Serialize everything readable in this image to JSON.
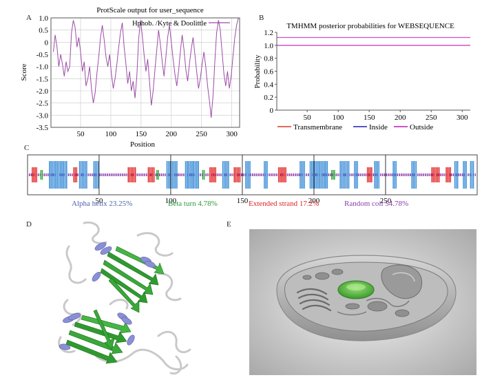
{
  "panels": {
    "a": "A",
    "b": "B",
    "c": "C",
    "d": "D",
    "e": "E"
  },
  "chart_data": [
    {
      "type": "line",
      "title": "ProtScale output for user_sequence",
      "xlabel": "Position",
      "ylabel": "Score",
      "xlim": [
        1,
        313
      ],
      "ylim": [
        -3.5,
        1.0
      ],
      "xticks": [
        50,
        100,
        150,
        200,
        250,
        300
      ],
      "yticks": [
        1.0,
        0.5,
        0,
        -0.5,
        -1.0,
        -1.5,
        -2.0,
        -2.5,
        -3.0,
        -3.5
      ],
      "ytick_labels": [
        "1.0",
        "0.5",
        "0",
        "-0.5",
        "-1.0",
        "-1.5",
        "-2.0",
        "-2.5",
        "-3.0",
        "-3.5"
      ],
      "series": [
        {
          "name": "Hphob. /Kyte & Doolittle",
          "color": "#9b4ba6",
          "x": [
            5,
            8,
            11,
            14,
            17,
            20,
            23,
            26,
            29,
            32,
            35,
            38,
            41,
            44,
            47,
            50,
            53,
            56,
            59,
            62,
            65,
            68,
            71,
            74,
            77,
            80,
            83,
            86,
            89,
            92,
            95,
            98,
            101,
            104,
            107,
            110,
            113,
            116,
            119,
            122,
            125,
            128,
            131,
            134,
            137,
            140,
            143,
            146,
            149,
            152,
            155,
            158,
            161,
            164,
            167,
            170,
            173,
            176,
            179,
            182,
            185,
            188,
            191,
            194,
            197,
            200,
            203,
            206,
            209,
            212,
            215,
            218,
            221,
            224,
            227,
            230,
            233,
            236,
            239,
            242,
            245,
            248,
            251,
            254,
            257,
            260,
            263,
            266,
            269,
            272,
            275,
            278,
            281,
            284,
            287,
            290,
            293,
            296,
            299,
            302,
            305,
            308,
            311
          ],
          "values": [
            -0.4,
            0.3,
            -0.2,
            -1.0,
            -0.5,
            -0.9,
            -1.4,
            -0.8,
            -1.2,
            -1.0,
            0.4,
            0.9,
            0.6,
            -0.2,
            0.2,
            -0.4,
            -1.2,
            -0.8,
            -1.8,
            -1.5,
            -1.0,
            -1.9,
            -2.5,
            -2.1,
            -1.3,
            -0.6,
            0.2,
            0.7,
            0.1,
            -0.6,
            -1.0,
            -0.5,
            -1.3,
            -1.9,
            -1.5,
            -0.9,
            -0.2,
            0.4,
            0.8,
            -0.2,
            -0.9,
            -1.7,
            -1.2,
            -2.0,
            -1.6,
            -2.3,
            -1.4,
            0.1,
            0.9,
            0.3,
            -0.5,
            -1.2,
            -0.7,
            -1.6,
            -2.6,
            -2.0,
            -1.1,
            -0.3,
            0.5,
            -0.1,
            -0.8,
            -1.4,
            -0.6,
            0.2,
            0.7,
            0.0,
            -0.7,
            -1.3,
            -1.8,
            -1.2,
            -0.4,
            0.3,
            -0.3,
            -1.1,
            -1.6,
            -0.9,
            -0.3,
            0.2,
            -0.5,
            -1.2,
            -1.9,
            -1.5,
            -0.9,
            -0.4,
            -1.0,
            -1.8,
            -2.4,
            -3.1,
            -2.2,
            -0.8,
            0.4,
            0.9,
            0.5,
            -0.4,
            -1.3,
            -1.8,
            -1.2,
            -1.9,
            -1.4,
            -0.6,
            0.2,
            0.7,
            1.0
          ]
        }
      ]
    },
    {
      "type": "line",
      "title": "TMHMM posterior probabilities for WEBSEQUENCE",
      "xlabel": "",
      "ylabel": "Probability",
      "xlim": [
        1,
        313
      ],
      "ylim": [
        0,
        1.2
      ],
      "xticks": [
        50,
        100,
        150,
        200,
        250,
        300
      ],
      "yticks": [
        0,
        0.2,
        0.4,
        0.6,
        0.8,
        1.0,
        1.2
      ],
      "ytick_labels": [
        "0",
        "0.2",
        "0.4",
        "0.6",
        "0.8",
        "1.0",
        "1.2"
      ],
      "series": [
        {
          "name": "Transmembrane",
          "color": "#e06a5a",
          "values": [
            0,
            0
          ]
        },
        {
          "name": "Inside",
          "color": "#5555c8",
          "values": [
            0,
            0
          ]
        },
        {
          "name": "Outside",
          "color": "#d04fc8",
          "values": [
            1,
            1
          ]
        }
      ],
      "legend": "bottom"
    }
  ],
  "secondary_structure": {
    "length": 313,
    "ticks": [
      "50",
      "100",
      "150",
      "200",
      "250"
    ],
    "stats": [
      {
        "label": "Alpha helix 23.25%",
        "color": "#4a5fb0"
      },
      {
        "label": "Beta turn 4.78%",
        "color": "#2a9a3a"
      },
      {
        "label": "Extended strand 17.2%",
        "color": "#e02020"
      },
      {
        "label": "Random coil 54.78%",
        "color": "#8a3aa8"
      }
    ],
    "segments": [
      {
        "type": "e",
        "start": 3,
        "end": 6
      },
      {
        "type": "t",
        "start": 9,
        "end": 10
      },
      {
        "type": "h",
        "start": 15,
        "end": 27
      },
      {
        "type": "e",
        "start": 32,
        "end": 34
      },
      {
        "type": "h",
        "start": 36,
        "end": 41
      },
      {
        "type": "h",
        "start": 46,
        "end": 49
      },
      {
        "type": "e",
        "start": 70,
        "end": 75
      },
      {
        "type": "e",
        "start": 84,
        "end": 88
      },
      {
        "type": "t",
        "start": 90,
        "end": 91
      },
      {
        "type": "h",
        "start": 97,
        "end": 104
      },
      {
        "type": "h",
        "start": 110,
        "end": 119
      },
      {
        "type": "t",
        "start": 122,
        "end": 123
      },
      {
        "type": "e",
        "start": 127,
        "end": 131
      },
      {
        "type": "h",
        "start": 136,
        "end": 140
      },
      {
        "type": "e",
        "start": 144,
        "end": 148
      },
      {
        "type": "h",
        "start": 152,
        "end": 155
      },
      {
        "type": "h",
        "start": 165,
        "end": 167
      },
      {
        "type": "e",
        "start": 175,
        "end": 180
      },
      {
        "type": "h",
        "start": 190,
        "end": 193
      },
      {
        "type": "h",
        "start": 197,
        "end": 209
      },
      {
        "type": "t",
        "start": 212,
        "end": 214
      },
      {
        "type": "h",
        "start": 218,
        "end": 224
      },
      {
        "type": "h",
        "start": 228,
        "end": 230
      },
      {
        "type": "e",
        "start": 237,
        "end": 240
      },
      {
        "type": "h",
        "start": 242,
        "end": 245
      },
      {
        "type": "h",
        "start": 255,
        "end": 257
      },
      {
        "type": "h",
        "start": 268,
        "end": 271
      },
      {
        "type": "e",
        "start": 282,
        "end": 287
      },
      {
        "type": "e",
        "start": 292,
        "end": 295
      },
      {
        "type": "h",
        "start": 298,
        "end": 300
      },
      {
        "type": "h",
        "start": 304,
        "end": 306
      },
      {
        "type": "h",
        "start": 309,
        "end": 311
      }
    ]
  }
}
